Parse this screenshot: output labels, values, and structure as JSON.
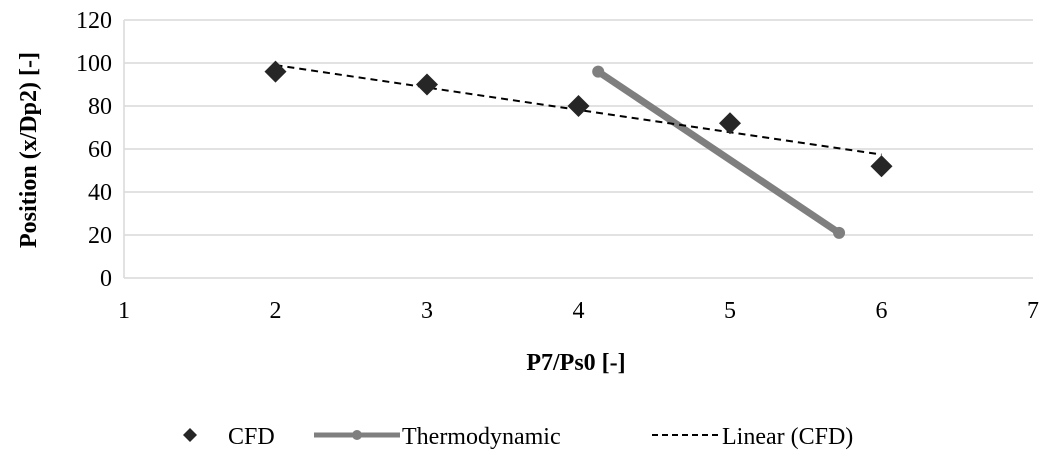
{
  "chart_data": {
    "type": "scatter",
    "title": "",
    "xlabel": "P7/Ps0  [-]",
    "ylabel": "Position (x/Dp2) [-]",
    "xlim": [
      1,
      7
    ],
    "ylim": [
      0,
      120
    ],
    "xticks": [
      "1",
      "2",
      "3",
      "4",
      "5",
      "6",
      "7"
    ],
    "yticks": [
      "0",
      "20",
      "40",
      "60",
      "80",
      "100",
      "120"
    ],
    "grid": "horizontal",
    "legend_position": "bottom",
    "series": [
      {
        "name": "CFD",
        "type": "scatter",
        "marker": "diamond",
        "color": "#262626",
        "x": [
          2,
          3,
          4,
          5,
          6
        ],
        "y": [
          96,
          90,
          80,
          72,
          52
        ]
      },
      {
        "name": "Thermodynamic",
        "type": "line",
        "marker": "circle",
        "color": "#7f7f7f",
        "x": [
          4.13,
          5.72
        ],
        "y": [
          96,
          21
        ]
      },
      {
        "name": "Linear  (CFD)",
        "type": "trendline",
        "style": "dashed",
        "color": "#000000",
        "x": [
          2,
          6
        ],
        "y": [
          99,
          57.4
        ]
      }
    ]
  }
}
